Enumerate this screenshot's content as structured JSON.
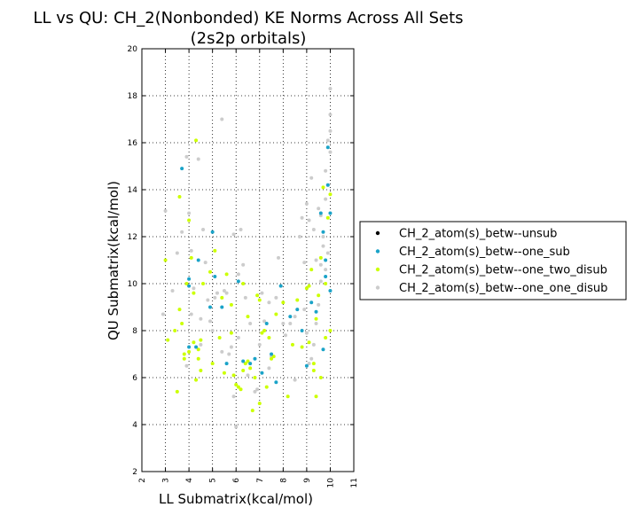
{
  "chart_data": {
    "type": "scatter",
    "title_line1": "LL vs QU: CH_2(Nonbonded) KE Norms Across All Sets",
    "title_line2": "(2s2p orbitals)",
    "xlabel": "LL Submatrix(kcal/mol)",
    "ylabel": "QU Submatrix(kcal/mol)",
    "xlim": [
      2,
      11
    ],
    "ylim": [
      2,
      20
    ],
    "x_ticks": [
      "2",
      "3",
      "4",
      "5",
      "6",
      "7",
      "8",
      "9",
      "10",
      "11"
    ],
    "y_ticks": [
      "2",
      "4",
      "6",
      "8",
      "10",
      "12",
      "14",
      "16",
      "18",
      "20"
    ],
    "grid": true,
    "legend_position": "right",
    "series": [
      {
        "name": "CH_2_atom(s)_betw--unsub",
        "color": "#000000",
        "x": [],
        "y": []
      },
      {
        "name": "CH_2_atom(s)_betw--one_sub",
        "color": "#1aa3c8",
        "x": [
          3.7,
          4.0,
          4.0,
          4.0,
          4.3,
          4.4,
          4.9,
          5.0,
          5.1,
          5.4,
          5.6,
          6.1,
          6.3,
          6.6,
          6.8,
          7.1,
          7.3,
          7.5,
          7.7,
          7.9,
          8.3,
          8.6,
          8.8,
          9.0,
          9.2,
          9.4,
          9.6,
          9.7,
          9.8,
          9.9,
          10.0,
          9.7,
          9.9,
          10.0,
          9.8
        ],
        "y": [
          14.9,
          10.2,
          9.9,
          7.3,
          7.3,
          11.0,
          9.0,
          12.2,
          10.3,
          9.0,
          6.6,
          10.1,
          6.7,
          6.6,
          6.8,
          6.2,
          8.3,
          7.0,
          5.8,
          9.9,
          8.6,
          8.9,
          8.0,
          6.5,
          9.2,
          8.8,
          13.0,
          12.2,
          11.0,
          15.8,
          13.0,
          7.2,
          14.2,
          9.7,
          10.3
        ]
      },
      {
        "name": "CH_2_atom(s)_betw--one_two_disub",
        "color": "#ccff00",
        "x": [
          3.0,
          3.1,
          3.4,
          3.5,
          3.6,
          3.7,
          3.8,
          3.9,
          4.0,
          4.1,
          4.2,
          4.3,
          4.4,
          4.5,
          4.6,
          4.3,
          3.8,
          4.0,
          4.5,
          4.9,
          5.1,
          5.3,
          5.5,
          5.6,
          5.8,
          5.9,
          6.0,
          6.1,
          6.2,
          6.3,
          6.4,
          6.5,
          6.6,
          6.7,
          6.8,
          6.9,
          7.0,
          7.1,
          7.2,
          7.3,
          7.4,
          7.5,
          7.6,
          7.7,
          8.0,
          8.2,
          8.4,
          8.6,
          8.8,
          9.0,
          9.1,
          9.3,
          9.4,
          9.5,
          9.6,
          9.7,
          9.8,
          9.9,
          10.0,
          10.0,
          9.8,
          9.6,
          9.4,
          9.2,
          4.2,
          4.4,
          3.6,
          5.0,
          5.4,
          5.8,
          6.3,
          6.5,
          7.0,
          9.1,
          9.3
        ],
        "y": [
          11.0,
          7.6,
          8.0,
          5.4,
          13.7,
          8.3,
          7.0,
          10.0,
          12.7,
          11.1,
          9.6,
          16.1,
          6.8,
          6.3,
          10.0,
          5.9,
          6.8,
          7.1,
          7.6,
          10.5,
          11.4,
          7.7,
          6.2,
          10.4,
          7.9,
          6.1,
          5.7,
          5.6,
          5.5,
          6.3,
          6.6,
          8.6,
          6.4,
          4.6,
          6.0,
          9.5,
          9.3,
          7.9,
          8.0,
          5.6,
          7.7,
          6.8,
          6.9,
          8.7,
          9.2,
          5.2,
          7.4,
          9.3,
          7.3,
          9.8,
          7.5,
          6.6,
          5.2,
          9.5,
          11.1,
          14.1,
          10.0,
          12.8,
          13.8,
          8.0,
          7.7,
          6.0,
          8.5,
          10.6,
          7.5,
          7.2,
          8.9,
          6.6,
          9.4,
          9.1,
          10.0,
          6.7,
          4.9,
          9.9,
          6.3
        ]
      },
      {
        "name": "CH_2_atom(s)_betw--one_one_disub",
        "color": "#cccccc",
        "x": [
          2.9,
          3.0,
          3.3,
          3.5,
          3.7,
          3.9,
          4.0,
          4.1,
          4.2,
          4.4,
          4.5,
          4.6,
          4.7,
          4.8,
          4.9,
          5.0,
          5.1,
          5.2,
          5.4,
          5.5,
          5.6,
          5.7,
          5.8,
          5.9,
          6.0,
          6.1,
          6.2,
          6.3,
          6.4,
          6.5,
          6.6,
          6.8,
          6.9,
          7.0,
          7.1,
          7.2,
          7.4,
          7.5,
          7.7,
          7.8,
          8.0,
          8.1,
          8.3,
          8.5,
          8.7,
          8.8,
          8.9,
          9.0,
          9.1,
          9.2,
          9.3,
          9.4,
          9.5,
          9.6,
          9.7,
          9.8,
          9.9,
          10.0,
          10.0,
          10.0,
          9.9,
          9.8,
          9.7,
          9.6,
          9.5,
          9.4,
          9.3,
          9.2,
          9.1,
          9.0,
          8.9,
          5.4,
          4.5,
          3.9,
          4.1,
          5.9,
          6.1,
          7.4,
          8.5,
          10.0,
          9.9,
          9.6,
          9.8
        ],
        "y": [
          8.7,
          13.1,
          9.7,
          11.3,
          12.2,
          15.4,
          13.0,
          11.4,
          9.8,
          15.3,
          8.5,
          12.3,
          10.9,
          9.3,
          8.4,
          8.0,
          9.4,
          9.6,
          17.0,
          9.7,
          9.6,
          7.0,
          7.3,
          5.2,
          3.9,
          7.7,
          12.3,
          10.8,
          9.4,
          6.1,
          8.3,
          5.4,
          5.5,
          7.4,
          9.6,
          8.4,
          9.2,
          6.9,
          9.4,
          11.1,
          8.3,
          7.8,
          8.3,
          8.6,
          12.0,
          12.8,
          10.9,
          13.4,
          12.7,
          14.5,
          12.3,
          11.0,
          13.2,
          10.8,
          12.0,
          14.8,
          16.1,
          18.3,
          17.2,
          15.6,
          14.2,
          13.6,
          11.6,
          10.1,
          9.1,
          8.3,
          7.4,
          6.8,
          6.6,
          7.9,
          8.9,
          7.1,
          7.4,
          6.5,
          8.7,
          12.1,
          10.4,
          6.4,
          5.9,
          16.5,
          11.3,
          12.9,
          10.6
        ]
      }
    ]
  }
}
